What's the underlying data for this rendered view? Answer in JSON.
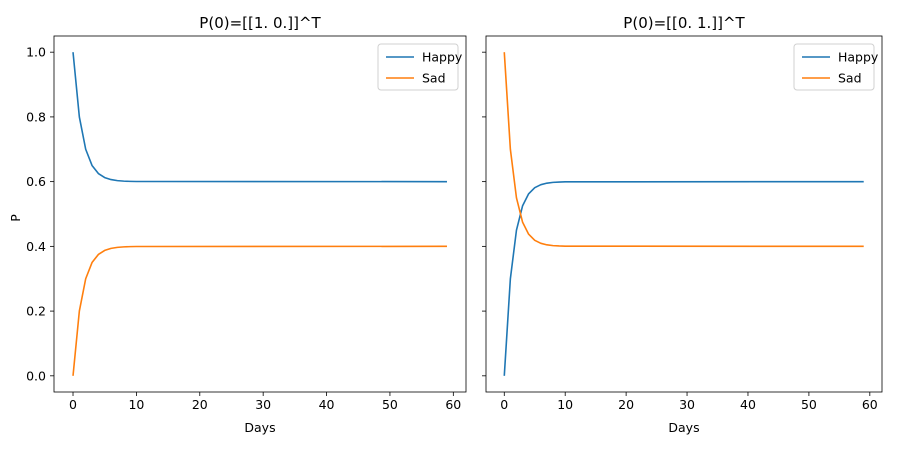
{
  "chart_data": [
    {
      "type": "line",
      "title": "P(0)=[[1. 0.]]^T",
      "xlabel": "Days",
      "ylabel": "P",
      "xlim": [
        -3,
        62
      ],
      "ylim": [
        -0.05,
        1.05
      ],
      "xticks": [
        0,
        10,
        20,
        30,
        40,
        50,
        60
      ],
      "yticks": [
        0.0,
        0.2,
        0.4,
        0.6,
        0.8,
        1.0
      ],
      "ytick_labels": [
        "0.0",
        "0.2",
        "0.4",
        "0.6",
        "0.8",
        "1.0"
      ],
      "legend_position": "top-right",
      "x": [
        0,
        1,
        2,
        3,
        4,
        5,
        6,
        7,
        8,
        9,
        10,
        59
      ],
      "series": [
        {
          "name": "Happy",
          "color": "#1f77b4",
          "values": [
            1.0,
            0.8,
            0.7,
            0.65,
            0.625,
            0.6125,
            0.6063,
            0.6031,
            0.6016,
            0.6008,
            0.6004,
            0.6
          ]
        },
        {
          "name": "Sad",
          "color": "#ff7f0e",
          "values": [
            0.0,
            0.2,
            0.3,
            0.35,
            0.375,
            0.3875,
            0.3938,
            0.3969,
            0.3984,
            0.3992,
            0.3996,
            0.4
          ]
        }
      ]
    },
    {
      "type": "line",
      "title": "P(0)=[[0. 1.]]^T",
      "xlabel": "Days",
      "ylabel": "",
      "xlim": [
        -3,
        62
      ],
      "ylim": [
        -0.05,
        1.05
      ],
      "xticks": [
        0,
        10,
        20,
        30,
        40,
        50,
        60
      ],
      "yticks": [
        0.0,
        0.2,
        0.4,
        0.6,
        0.8,
        1.0
      ],
      "ytick_labels": [],
      "legend_position": "top-right",
      "x": [
        0,
        1,
        2,
        3,
        4,
        5,
        6,
        7,
        8,
        9,
        10,
        59
      ],
      "series": [
        {
          "name": "Happy",
          "color": "#1f77b4",
          "values": [
            0.0,
            0.3,
            0.45,
            0.525,
            0.5625,
            0.5813,
            0.5906,
            0.5953,
            0.5977,
            0.5988,
            0.5994,
            0.6
          ]
        },
        {
          "name": "Sad",
          "color": "#ff7f0e",
          "values": [
            1.0,
            0.7,
            0.55,
            0.475,
            0.4375,
            0.4188,
            0.4094,
            0.4047,
            0.4023,
            0.4012,
            0.4006,
            0.4
          ]
        }
      ]
    }
  ]
}
